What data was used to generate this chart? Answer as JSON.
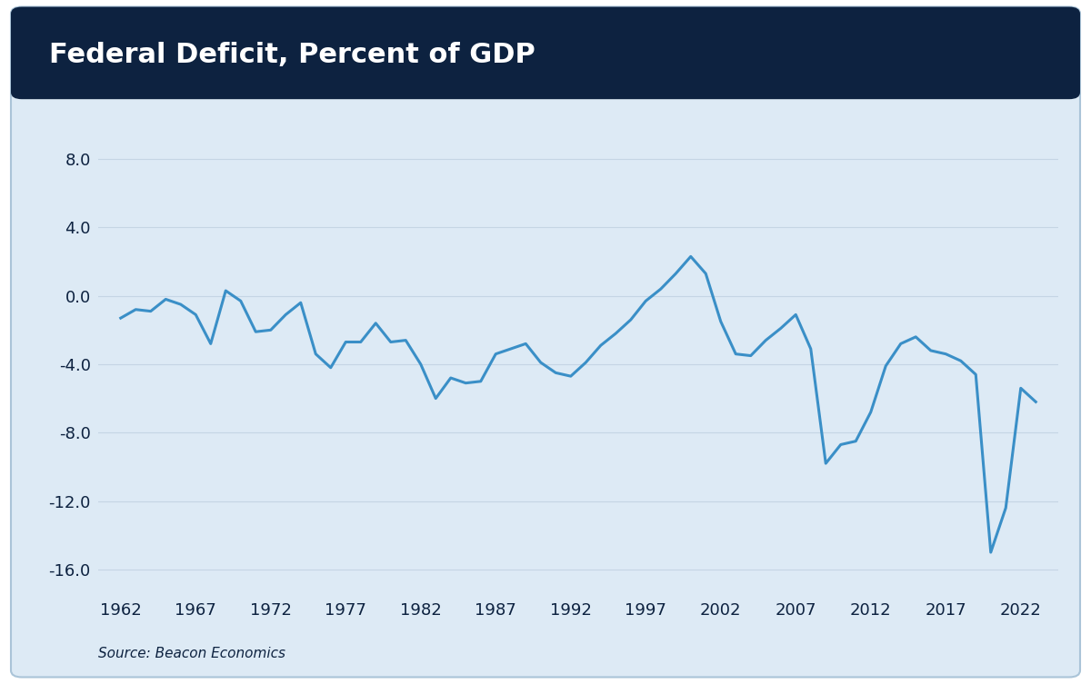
{
  "title": "Federal Deficit, Percent of GDP",
  "source": "Source: Beacon Economics",
  "line_color": "#3a8fc7",
  "background_color": "#ddeaf5",
  "title_bg_color": "#0d2240",
  "title_text_color": "#ffffff",
  "plot_bg_color": "#ddeaf5",
  "grid_color": "#c5d5e4",
  "axis_text_color": "#0d2240",
  "outer_bg_color": "#ffffff",
  "ylim": [
    -17.5,
    10.5
  ],
  "yticks": [
    8.0,
    4.0,
    0.0,
    -4.0,
    -8.0,
    -12.0,
    -16.0
  ],
  "xtick_labels": [
    "1962",
    "1967",
    "1972",
    "1977",
    "1982",
    "1987",
    "1992",
    "1997",
    "2002",
    "2007",
    "2012",
    "2017",
    "2022"
  ],
  "years": [
    1962,
    1963,
    1964,
    1965,
    1966,
    1967,
    1968,
    1969,
    1970,
    1971,
    1972,
    1973,
    1974,
    1975,
    1976,
    1977,
    1978,
    1979,
    1980,
    1981,
    1982,
    1983,
    1984,
    1985,
    1986,
    1987,
    1988,
    1989,
    1990,
    1991,
    1992,
    1993,
    1994,
    1995,
    1996,
    1997,
    1998,
    1999,
    2000,
    2001,
    2002,
    2003,
    2004,
    2005,
    2006,
    2007,
    2008,
    2009,
    2010,
    2011,
    2012,
    2013,
    2014,
    2015,
    2016,
    2017,
    2018,
    2019,
    2020,
    2021,
    2022,
    2023
  ],
  "values": [
    -1.3,
    -0.8,
    -0.9,
    -0.2,
    -0.5,
    -1.1,
    -2.8,
    0.3,
    -0.3,
    -2.1,
    -2.0,
    -1.1,
    -0.4,
    -3.4,
    -4.2,
    -2.7,
    -2.7,
    -1.6,
    -2.7,
    -2.6,
    -4.0,
    -6.0,
    -4.8,
    -5.1,
    -5.0,
    -3.4,
    -3.1,
    -2.8,
    -3.9,
    -4.5,
    -4.7,
    -3.9,
    -2.9,
    -2.2,
    -1.4,
    -0.3,
    0.4,
    1.3,
    2.3,
    1.3,
    -1.5,
    -3.4,
    -3.5,
    -2.6,
    -1.9,
    -1.1,
    -3.1,
    -9.8,
    -8.7,
    -8.5,
    -6.8,
    -4.1,
    -2.8,
    -2.4,
    -3.2,
    -3.4,
    -3.8,
    -4.6,
    -15.0,
    -12.4,
    -5.4,
    -6.2
  ],
  "title_fontsize": 22,
  "tick_fontsize": 13,
  "source_fontsize": 11,
  "line_width": 2.2
}
